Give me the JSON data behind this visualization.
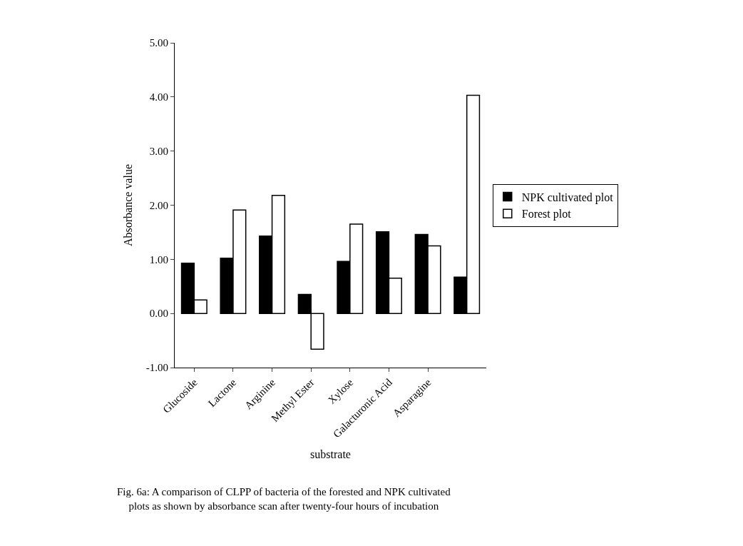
{
  "chart_data": {
    "type": "bar",
    "xlabel": "substrate",
    "ylabel": "Absorbance value",
    "categories": [
      "Glucoside",
      "Lactone",
      "Arginine",
      "Methyl Ester",
      "Xylose",
      "Galacturonic Acid",
      "Asparagine",
      null
    ],
    "series": [
      {
        "name": "NPK cultivated plot",
        "color": "#000000",
        "values": [
          0.93,
          1.02,
          1.43,
          0.35,
          0.96,
          1.51,
          1.46,
          0.67
        ]
      },
      {
        "name": "Forest plot",
        "color": "#ffffff",
        "values": [
          0.25,
          1.91,
          2.18,
          -0.66,
          1.65,
          0.65,
          1.25,
          4.03
        ]
      }
    ],
    "ylim": [
      -1,
      5
    ],
    "yticks": [
      {
        "value": -1,
        "label": "-1.00"
      },
      {
        "value": 0,
        "label": "0.00"
      },
      {
        "value": 1,
        "label": "1.00"
      },
      {
        "value": 2,
        "label": "2.00"
      },
      {
        "value": 3,
        "label": "3.00"
      },
      {
        "value": 4,
        "label": "4.00"
      },
      {
        "value": 5,
        "label": "5.00"
      }
    ],
    "legend": "right",
    "annotations": [
      "Fig. 6a: A comparison of CLPP of bacteria of the forested and NPK cultivated plots as shown by absorbance scan after twenty-four hours of incubation"
    ]
  }
}
